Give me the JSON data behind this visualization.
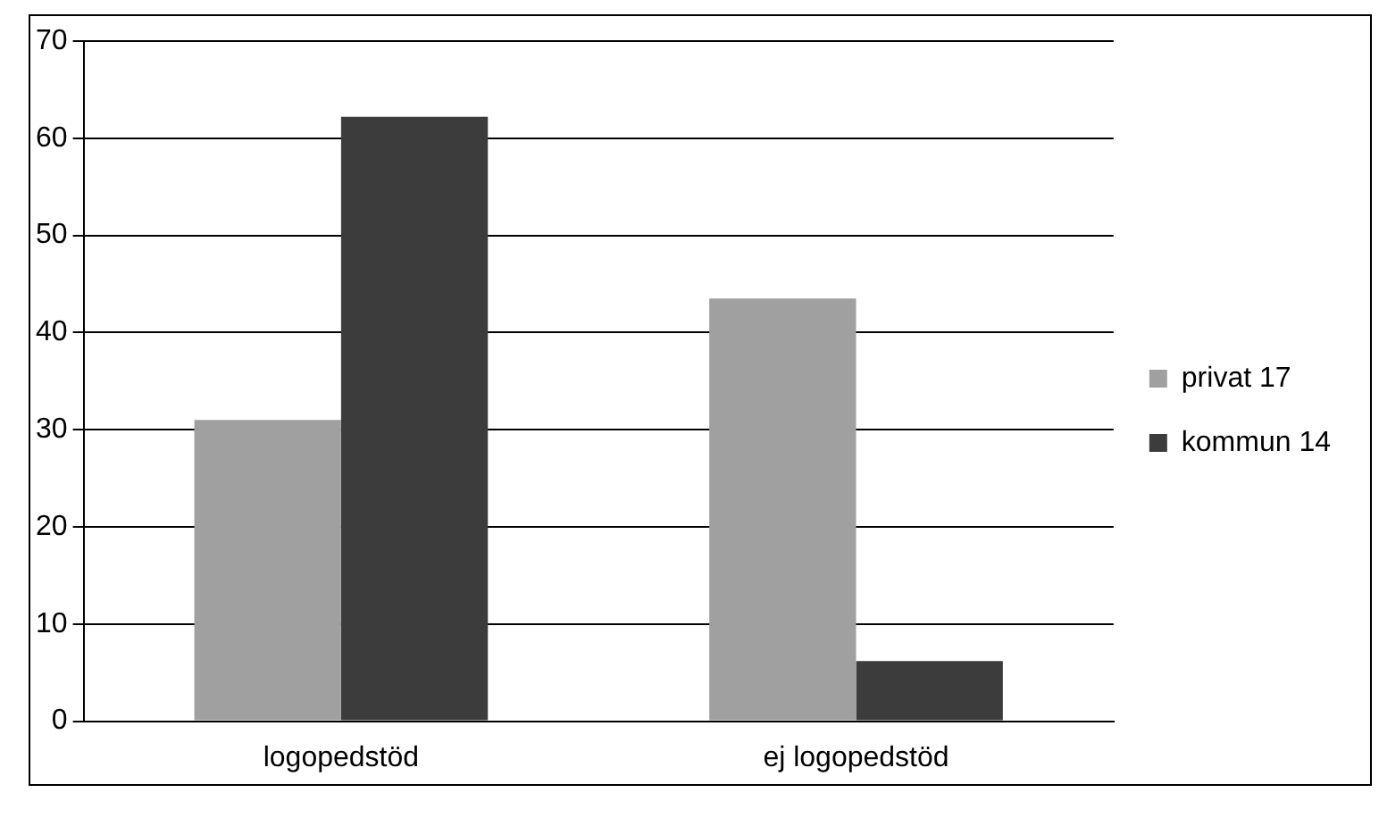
{
  "chart_data": {
    "type": "bar",
    "categories": [
      "logopedstöd",
      "ej logopedstöd"
    ],
    "series": [
      {
        "name": "privat 17",
        "color": "#a0a0a0",
        "values": [
          31,
          43.5
        ]
      },
      {
        "name": "kommun 14",
        "color": "#3c3c3c",
        "values": [
          62.2,
          6.2
        ]
      }
    ],
    "ylim": [
      0,
      70
    ],
    "yticks": [
      0,
      10,
      20,
      30,
      40,
      50,
      60,
      70
    ],
    "grid": "y",
    "legend": "right"
  }
}
